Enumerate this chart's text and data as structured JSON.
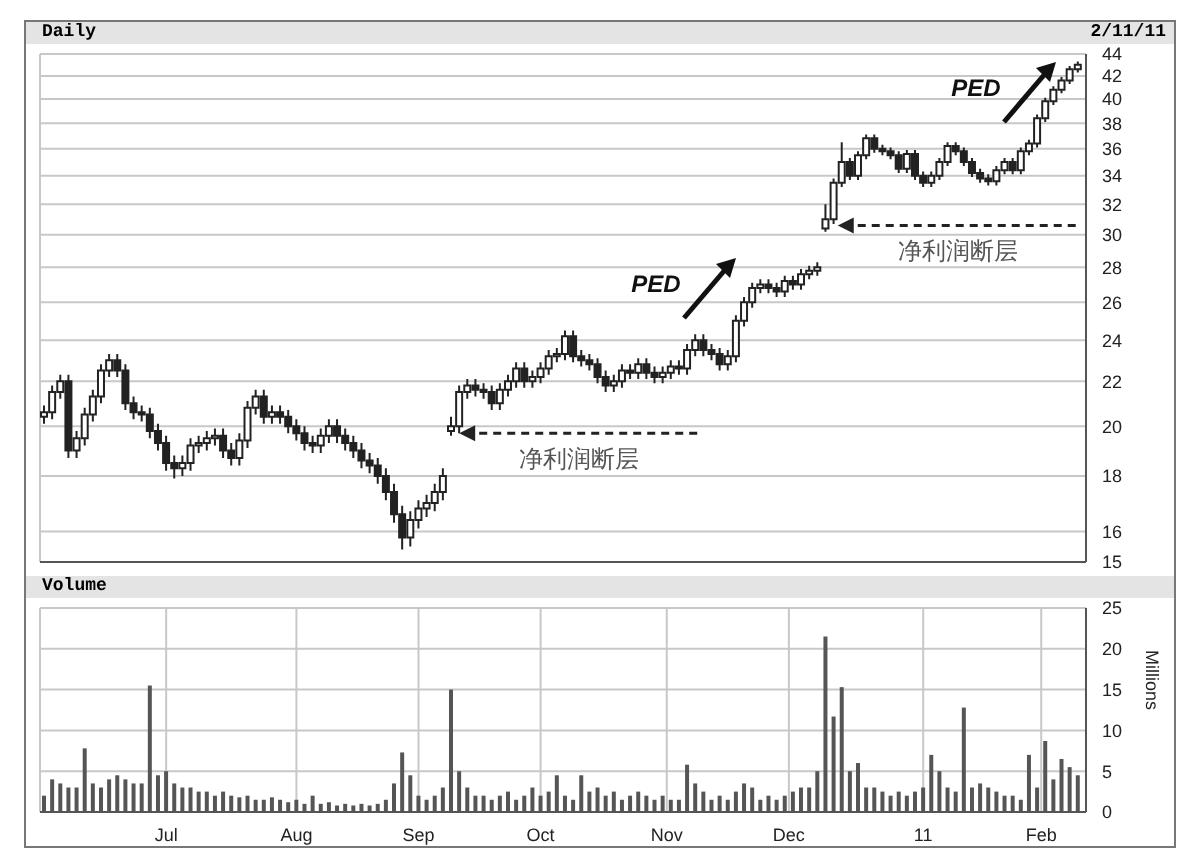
{
  "chart_data": [
    {
      "type": "candlestick",
      "title": "Daily",
      "color": "#222222",
      "log": true,
      "grid": true,
      "tick_labels": "y",
      "annotations": [
        "2/11/11",
        "PED",
        "PED",
        {
          "text": "净利润断层",
          "x": "2010-09-11",
          "y": 19.7
        },
        {
          "text": "净利润断层",
          "x": "2010-12-13",
          "y": 30.6
        }
      ],
      "xlim": [
        "2010-05-31",
        "2011-02-12"
      ],
      "xticks": [
        {
          "value": "2010-07-01",
          "label": null
        },
        {
          "value": "2010-08-02",
          "label": null
        },
        {
          "value": "2010-09-01",
          "label": null
        },
        {
          "value": "2010-10-01",
          "label": null
        },
        {
          "value": "2010-11-01",
          "label": null
        },
        {
          "value": "2010-12-01",
          "label": null
        },
        {
          "value": "2011-01-03",
          "label": null
        },
        {
          "value": "2011-02-01",
          "label": null
        }
      ],
      "ylim": [
        15,
        44
      ],
      "yticks": [
        15,
        16,
        18,
        20,
        22,
        24,
        26,
        28,
        30,
        32,
        34,
        36,
        38,
        40,
        42,
        44
      ],
      "x": [
        "2010-06-01",
        "2010-06-03",
        "2010-06-05",
        "2010-06-07",
        "2010-06-09",
        "2010-06-11",
        "2010-06-13",
        "2010-06-15",
        "2010-06-17",
        "2010-06-19",
        "2010-06-21",
        "2010-06-23",
        "2010-06-25",
        "2010-06-27",
        "2010-06-29",
        "2010-07-01",
        "2010-07-03",
        "2010-07-05",
        "2010-07-07",
        "2010-07-09",
        "2010-07-11",
        "2010-07-13",
        "2010-07-15",
        "2010-07-17",
        "2010-07-19",
        "2010-07-21",
        "2010-07-23",
        "2010-07-25",
        "2010-07-27",
        "2010-07-29",
        "2010-07-31",
        "2010-08-02",
        "2010-08-04",
        "2010-08-06",
        "2010-08-08",
        "2010-08-10",
        "2010-08-12",
        "2010-08-14",
        "2010-08-16",
        "2010-08-18",
        "2010-08-20",
        "2010-08-22",
        "2010-08-24",
        "2010-08-26",
        "2010-08-28",
        "2010-08-30",
        "2010-09-01",
        "2010-09-03",
        "2010-09-05",
        "2010-09-07",
        "2010-09-09",
        "2010-09-11",
        "2010-09-13",
        "2010-09-15",
        "2010-09-17",
        "2010-09-19",
        "2010-09-21",
        "2010-09-23",
        "2010-09-25",
        "2010-09-27",
        "2010-09-29",
        "2010-10-01",
        "2010-10-03",
        "2010-10-05",
        "2010-10-07",
        "2010-10-09",
        "2010-10-11",
        "2010-10-13",
        "2010-10-15",
        "2010-10-17",
        "2010-10-19",
        "2010-10-21",
        "2010-10-23",
        "2010-10-25",
        "2010-10-27",
        "2010-10-29",
        "2010-10-31",
        "2010-11-02",
        "2010-11-04",
        "2010-11-06",
        "2010-11-08",
        "2010-11-10",
        "2010-11-12",
        "2010-11-14",
        "2010-11-16",
        "2010-11-18",
        "2010-11-20",
        "2010-11-22",
        "2010-11-24",
        "2010-11-26",
        "2010-11-28",
        "2010-11-30",
        "2010-12-02",
        "2010-12-04",
        "2010-12-06",
        "2010-12-08",
        "2010-12-10",
        "2010-12-12",
        "2010-12-14",
        "2010-12-16",
        "2010-12-18",
        "2010-12-20",
        "2010-12-22",
        "2010-12-24",
        "2010-12-26",
        "2010-12-28",
        "2010-12-30",
        "2011-01-01",
        "2011-01-03",
        "2011-01-05",
        "2011-01-07",
        "2011-01-09",
        "2011-01-11",
        "2011-01-13",
        "2011-01-15",
        "2011-01-17",
        "2011-01-19",
        "2011-01-21",
        "2011-01-23",
        "2011-01-25",
        "2011-01-27",
        "2011-01-29",
        "2011-01-31",
        "2011-02-02",
        "2011-02-04",
        "2011-02-06",
        "2011-02-08",
        "2011-02-10"
      ],
      "ohlc": [
        [
          20.4,
          20.9,
          20.1,
          20.6
        ],
        [
          20.6,
          21.8,
          20.3,
          21.5
        ],
        [
          21.5,
          22.3,
          21.2,
          22.0
        ],
        [
          22.0,
          22.3,
          18.7,
          19.0
        ],
        [
          19.0,
          19.8,
          18.7,
          19.5
        ],
        [
          19.5,
          20.8,
          19.2,
          20.5
        ],
        [
          20.5,
          21.6,
          20.2,
          21.3
        ],
        [
          21.3,
          22.8,
          21.0,
          22.5
        ],
        [
          22.5,
          23.3,
          22.2,
          23.0
        ],
        [
          23.0,
          23.3,
          22.2,
          22.5
        ],
        [
          22.5,
          22.8,
          20.7,
          21.0
        ],
        [
          21.0,
          21.3,
          20.3,
          20.6
        ],
        [
          20.6,
          20.9,
          20.2,
          20.5
        ],
        [
          20.5,
          20.8,
          19.5,
          19.8
        ],
        [
          19.8,
          20.1,
          19.0,
          19.3
        ],
        [
          19.3,
          19.6,
          18.2,
          18.5
        ],
        [
          18.5,
          18.8,
          17.9,
          18.3
        ],
        [
          18.3,
          18.8,
          18.0,
          18.5
        ],
        [
          18.5,
          19.5,
          18.2,
          19.2
        ],
        [
          19.2,
          19.6,
          18.9,
          19.3
        ],
        [
          19.3,
          19.8,
          19.0,
          19.5
        ],
        [
          19.5,
          19.9,
          19.2,
          19.6
        ],
        [
          19.6,
          19.9,
          18.7,
          19.0
        ],
        [
          19.0,
          19.3,
          18.4,
          18.7
        ],
        [
          18.7,
          19.7,
          18.4,
          19.4
        ],
        [
          19.4,
          21.1,
          19.1,
          20.8
        ],
        [
          20.8,
          21.6,
          20.5,
          21.3
        ],
        [
          21.3,
          21.6,
          20.1,
          20.4
        ],
        [
          20.4,
          20.9,
          20.1,
          20.6
        ],
        [
          20.6,
          20.9,
          20.1,
          20.4
        ],
        [
          20.4,
          20.7,
          19.7,
          20.0
        ],
        [
          20.0,
          20.3,
          19.4,
          19.7
        ],
        [
          19.7,
          20.0,
          19.0,
          19.3
        ],
        [
          19.3,
          19.6,
          18.9,
          19.2
        ],
        [
          19.2,
          19.9,
          18.9,
          19.6
        ],
        [
          19.6,
          20.3,
          19.3,
          20.0
        ],
        [
          20.0,
          20.3,
          19.3,
          19.6
        ],
        [
          19.6,
          19.9,
          19.0,
          19.3
        ],
        [
          19.3,
          19.6,
          18.7,
          19.0
        ],
        [
          19.0,
          19.3,
          18.3,
          18.6
        ],
        [
          18.6,
          18.9,
          18.1,
          18.4
        ],
        [
          18.4,
          18.7,
          17.7,
          18.0
        ],
        [
          18.0,
          18.3,
          17.1,
          17.4
        ],
        [
          17.4,
          17.7,
          16.3,
          16.6
        ],
        [
          16.6,
          16.9,
          15.4,
          15.8
        ],
        [
          15.8,
          16.7,
          15.5,
          16.4
        ],
        [
          16.4,
          17.1,
          16.1,
          16.8
        ],
        [
          16.8,
          17.3,
          16.5,
          17.0
        ],
        [
          17.0,
          17.7,
          16.7,
          17.4
        ],
        [
          17.4,
          18.3,
          17.1,
          18.0
        ],
        [
          19.8,
          20.4,
          19.6,
          20.0
        ],
        [
          20.0,
          21.8,
          19.7,
          21.5
        ],
        [
          21.5,
          22.1,
          21.2,
          21.8
        ],
        [
          21.8,
          22.1,
          21.3,
          21.6
        ],
        [
          21.6,
          21.9,
          21.2,
          21.5
        ],
        [
          21.5,
          21.8,
          20.7,
          21.0
        ],
        [
          21.0,
          21.9,
          20.7,
          21.6
        ],
        [
          21.6,
          22.3,
          21.3,
          22.0
        ],
        [
          22.0,
          22.9,
          21.7,
          22.6
        ],
        [
          22.6,
          22.9,
          21.7,
          22.0
        ],
        [
          22.0,
          22.5,
          21.7,
          22.2
        ],
        [
          22.2,
          22.9,
          21.9,
          22.6
        ],
        [
          22.6,
          23.5,
          22.3,
          23.2
        ],
        [
          23.2,
          23.6,
          22.9,
          23.3
        ],
        [
          23.3,
          24.5,
          23.0,
          24.2
        ],
        [
          24.2,
          24.5,
          22.9,
          23.2
        ],
        [
          23.2,
          23.5,
          22.7,
          23.0
        ],
        [
          23.0,
          23.3,
          22.5,
          22.8
        ],
        [
          22.8,
          23.1,
          21.9,
          22.2
        ],
        [
          22.2,
          22.5,
          21.5,
          21.8
        ],
        [
          21.8,
          22.3,
          21.5,
          22.0
        ],
        [
          22.0,
          22.8,
          21.7,
          22.5
        ],
        [
          22.5,
          22.8,
          22.1,
          22.4
        ],
        [
          22.4,
          23.1,
          22.1,
          22.8
        ],
        [
          22.8,
          23.1,
          22.1,
          22.4
        ],
        [
          22.4,
          22.7,
          21.9,
          22.2
        ],
        [
          22.2,
          22.7,
          21.9,
          22.4
        ],
        [
          22.4,
          23.0,
          22.1,
          22.7
        ],
        [
          22.7,
          23.0,
          22.3,
          22.6
        ],
        [
          22.6,
          23.8,
          22.3,
          23.5
        ],
        [
          23.5,
          24.3,
          23.2,
          24.0
        ],
        [
          24.0,
          24.3,
          23.2,
          23.5
        ],
        [
          23.5,
          23.8,
          23.0,
          23.3
        ],
        [
          23.3,
          23.6,
          22.5,
          22.8
        ],
        [
          22.8,
          23.5,
          22.5,
          23.2
        ],
        [
          23.2,
          25.3,
          22.9,
          25.0
        ],
        [
          25.0,
          26.3,
          24.7,
          26.0
        ],
        [
          26.0,
          27.1,
          25.7,
          26.8
        ],
        [
          26.8,
          27.3,
          26.5,
          27.0
        ],
        [
          27.0,
          27.3,
          26.5,
          26.8
        ],
        [
          26.8,
          27.1,
          26.3,
          26.6
        ],
        [
          26.6,
          27.5,
          26.3,
          27.2
        ],
        [
          27.2,
          27.5,
          26.7,
          27.0
        ],
        [
          27.0,
          27.9,
          26.7,
          27.6
        ],
        [
          27.6,
          28.1,
          27.3,
          27.8
        ],
        [
          27.8,
          28.3,
          27.5,
          28.0
        ],
        [
          30.4,
          32.0,
          30.2,
          31.0
        ],
        [
          31.0,
          33.8,
          30.7,
          33.5
        ],
        [
          33.5,
          36.5,
          33.2,
          35.0
        ],
        [
          35.0,
          35.3,
          33.7,
          34.0
        ],
        [
          34.0,
          35.8,
          33.7,
          35.5
        ],
        [
          35.5,
          37.1,
          35.2,
          36.8
        ],
        [
          36.8,
          37.1,
          35.7,
          36.0
        ],
        [
          36.0,
          36.3,
          35.5,
          35.8
        ],
        [
          35.8,
          36.1,
          35.2,
          35.5
        ],
        [
          35.5,
          35.8,
          34.2,
          34.5
        ],
        [
          34.5,
          35.9,
          34.2,
          35.6
        ],
        [
          35.6,
          35.9,
          33.7,
          34.0
        ],
        [
          34.0,
          34.3,
          33.2,
          33.5
        ],
        [
          33.5,
          34.3,
          33.2,
          34.0
        ],
        [
          34.0,
          35.3,
          33.7,
          35.0
        ],
        [
          35.0,
          36.5,
          34.7,
          36.2
        ],
        [
          36.2,
          36.5,
          35.5,
          35.8
        ],
        [
          35.8,
          36.1,
          34.7,
          35.0
        ],
        [
          35.0,
          35.3,
          33.9,
          34.2
        ],
        [
          34.2,
          34.5,
          33.5,
          33.8
        ],
        [
          33.8,
          34.1,
          33.3,
          33.6
        ],
        [
          33.6,
          34.7,
          33.3,
          34.4
        ],
        [
          34.4,
          35.3,
          34.1,
          35.0
        ],
        [
          35.0,
          35.3,
          34.1,
          34.4
        ],
        [
          34.4,
          36.1,
          34.1,
          35.8
        ],
        [
          35.8,
          36.7,
          35.5,
          36.4
        ],
        [
          36.4,
          38.7,
          36.1,
          38.4
        ],
        [
          38.4,
          40.1,
          38.1,
          39.8
        ],
        [
          39.8,
          41.1,
          39.5,
          40.8
        ],
        [
          40.8,
          41.9,
          40.5,
          41.6
        ],
        [
          41.6,
          42.9,
          41.3,
          42.6
        ],
        [
          42.6,
          43.3,
          42.3,
          43.0
        ]
      ]
    },
    {
      "type": "bar",
      "title": "Volume",
      "ylabel": "Millions",
      "color": "#555555",
      "grid": true,
      "xlim": [
        "2010-05-31",
        "2011-02-12"
      ],
      "xticks": [
        {
          "value": "2010-07-01",
          "label": "Jul"
        },
        {
          "value": "2010-08-02",
          "label": "Aug"
        },
        {
          "value": "2010-09-01",
          "label": "Sep"
        },
        {
          "value": "2010-10-01",
          "label": "Oct"
        },
        {
          "value": "2010-11-01",
          "label": "Nov"
        },
        {
          "value": "2010-12-01",
          "label": "Dec"
        },
        {
          "value": "2011-01-03",
          "label": "11"
        },
        {
          "value": "2011-02-01",
          "label": "Feb"
        }
      ],
      "ylim": [
        0,
        25
      ],
      "yticks": [
        0,
        5,
        10,
        15,
        20,
        25
      ],
      "x": [
        "2010-06-01",
        "2010-06-03",
        "2010-06-05",
        "2010-06-07",
        "2010-06-09",
        "2010-06-11",
        "2010-06-13",
        "2010-06-15",
        "2010-06-17",
        "2010-06-19",
        "2010-06-21",
        "2010-06-23",
        "2010-06-25",
        "2010-06-27",
        "2010-06-29",
        "2010-07-01",
        "2010-07-03",
        "2010-07-05",
        "2010-07-07",
        "2010-07-09",
        "2010-07-11",
        "2010-07-13",
        "2010-07-15",
        "2010-07-17",
        "2010-07-19",
        "2010-07-21",
        "2010-07-23",
        "2010-07-25",
        "2010-07-27",
        "2010-07-29",
        "2010-07-31",
        "2010-08-02",
        "2010-08-04",
        "2010-08-06",
        "2010-08-08",
        "2010-08-10",
        "2010-08-12",
        "2010-08-14",
        "2010-08-16",
        "2010-08-18",
        "2010-08-20",
        "2010-08-22",
        "2010-08-24",
        "2010-08-26",
        "2010-08-28",
        "2010-08-30",
        "2010-09-01",
        "2010-09-03",
        "2010-09-05",
        "2010-09-07",
        "2010-09-09",
        "2010-09-11",
        "2010-09-13",
        "2010-09-15",
        "2010-09-17",
        "2010-09-19",
        "2010-09-21",
        "2010-09-23",
        "2010-09-25",
        "2010-09-27",
        "2010-09-29",
        "2010-10-01",
        "2010-10-03",
        "2010-10-05",
        "2010-10-07",
        "2010-10-09",
        "2010-10-11",
        "2010-10-13",
        "2010-10-15",
        "2010-10-17",
        "2010-10-19",
        "2010-10-21",
        "2010-10-23",
        "2010-10-25",
        "2010-10-27",
        "2010-10-29",
        "2010-10-31",
        "2010-11-02",
        "2010-11-04",
        "2010-11-06",
        "2010-11-08",
        "2010-11-10",
        "2010-11-12",
        "2010-11-14",
        "2010-11-16",
        "2010-11-18",
        "2010-11-20",
        "2010-11-22",
        "2010-11-24",
        "2010-11-26",
        "2010-11-28",
        "2010-11-30",
        "2010-12-02",
        "2010-12-04",
        "2010-12-06",
        "2010-12-08",
        "2010-12-10",
        "2010-12-12",
        "2010-12-14",
        "2010-12-16",
        "2010-12-18",
        "2010-12-20",
        "2010-12-22",
        "2010-12-24",
        "2010-12-26",
        "2010-12-28",
        "2010-12-30",
        "2011-01-01",
        "2011-01-03",
        "2011-01-05",
        "2011-01-07",
        "2011-01-09",
        "2011-01-11",
        "2011-01-13",
        "2011-01-15",
        "2011-01-17",
        "2011-01-19",
        "2011-01-21",
        "2011-01-23",
        "2011-01-25",
        "2011-01-27",
        "2011-01-29",
        "2011-01-31",
        "2011-02-02",
        "2011-02-04",
        "2011-02-06",
        "2011-02-08",
        "2011-02-10"
      ],
      "values": [
        2,
        4,
        3.5,
        3,
        3,
        7.8,
        3.5,
        3,
        4,
        4.5,
        4,
        3.5,
        3.5,
        15.5,
        4.5,
        5,
        3.5,
        3,
        3,
        2.5,
        2.5,
        2,
        2.5,
        2,
        1.8,
        2,
        1.5,
        1.5,
        1.8,
        1.5,
        1.2,
        1.5,
        1,
        2,
        1,
        1.2,
        0.8,
        1,
        0.8,
        1,
        0.8,
        1,
        1.5,
        3.5,
        7.3,
        4.5,
        2,
        1.5,
        2,
        3,
        15,
        5,
        3,
        2,
        2,
        1.5,
        2,
        2.5,
        1.5,
        2,
        3,
        2,
        2.5,
        4.5,
        2,
        1.5,
        4.5,
        2.5,
        3,
        2,
        2.5,
        1.5,
        2,
        2.5,
        2,
        1.5,
        2,
        1.5,
        1.5,
        5.8,
        3.5,
        2.5,
        1.5,
        2,
        1.5,
        2.5,
        3.5,
        3,
        1.5,
        2,
        1.5,
        2,
        2.5,
        3,
        3,
        5,
        21.5,
        11.7,
        15.3,
        5,
        6,
        3,
        3,
        2.5,
        2,
        2.5,
        2,
        2.5,
        3,
        7,
        5,
        3,
        2.5,
        12.8,
        3,
        3.5,
        3,
        2.5,
        2,
        2,
        1.5,
        7,
        3,
        8.7,
        4,
        6.5,
        5.5,
        4.5
      ]
    }
  ]
}
